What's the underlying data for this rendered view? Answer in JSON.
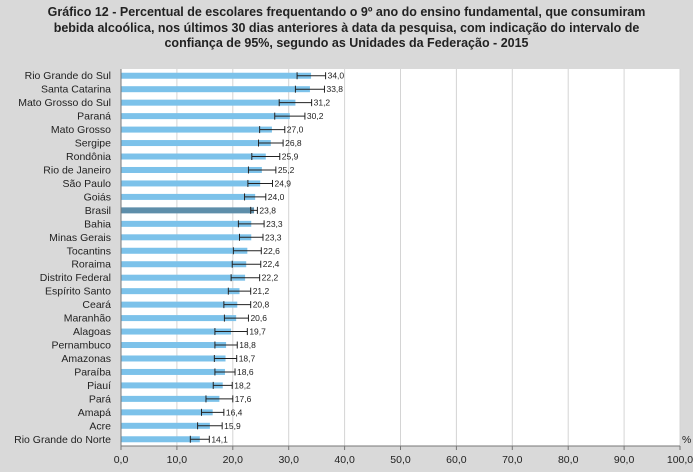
{
  "title_lines": [
    "Gráfico 12 - Percentual de escolares frequentando o 9º ano do ensino fundamental, que consumiram",
    "bebida alcoólica, nos últimos 30 dias anteriores à data da pesquisa, com indicação do intervalo de",
    "confiança de 95%, segundo as Unidades da Federação - 2015"
  ],
  "colors": {
    "background": "#d9d9d9",
    "plot": "#ffffff",
    "bar": "#7cc2ea",
    "bar_highlight": "#5e8eaa",
    "error": "#222222"
  },
  "chart_data": {
    "type": "bar",
    "orientation": "horizontal",
    "categories": [
      "Rio Grande do Sul",
      "Santa Catarina",
      "Mato Grosso do Sul",
      "Paraná",
      "Mato Grosso",
      "Sergipe",
      "Rondônia",
      "Rio de Janeiro",
      "São Paulo",
      "Goiás",
      "Brasil",
      "Bahia",
      "Minas Gerais",
      "Tocantins",
      "Roraima",
      "Distrito Federal",
      "Espírito Santo",
      "Ceará",
      "Maranhão",
      "Alagoas",
      "Pernambuco",
      "Amazonas",
      "Paraíba",
      "Piauí",
      "Pará",
      "Amapá",
      "Acre",
      "Rio Grande do Norte"
    ],
    "values": [
      34.0,
      33.8,
      31.2,
      30.2,
      27.0,
      26.8,
      25.9,
      25.2,
      24.9,
      24.0,
      23.8,
      23.3,
      23.3,
      22.6,
      22.4,
      22.2,
      21.2,
      20.8,
      20.6,
      19.7,
      18.8,
      18.7,
      18.6,
      18.2,
      17.6,
      16.4,
      15.9,
      14.1
    ],
    "value_labels": [
      "34,0",
      "33,8",
      "31,2",
      "30,2",
      "27,0",
      "26,8",
      "25,9",
      "25,2",
      "24,9",
      "24,0",
      "23,8",
      "23,3",
      "23,3",
      "22,6",
      "22,4",
      "22,2",
      "21,2",
      "20,8",
      "20,6",
      "19,7",
      "18,8",
      "18,7",
      "18,6",
      "18,2",
      "17,6",
      "16,4",
      "15,9",
      "14,1"
    ],
    "ci_low": [
      31.5,
      31.2,
      28.3,
      27.5,
      24.8,
      24.6,
      23.4,
      22.8,
      22.7,
      22.1,
      23.2,
      21.0,
      21.2,
      20.1,
      19.9,
      19.7,
      19.2,
      18.4,
      18.5,
      16.8,
      16.8,
      16.7,
      16.8,
      16.5,
      15.2,
      14.4,
      13.7,
      12.4
    ],
    "ci_high": [
      36.6,
      36.4,
      34.1,
      32.9,
      29.3,
      29.0,
      28.4,
      27.7,
      27.1,
      25.9,
      24.4,
      25.6,
      25.4,
      25.1,
      25.0,
      24.8,
      23.2,
      23.2,
      22.8,
      22.6,
      20.8,
      20.7,
      20.4,
      19.9,
      20.0,
      18.4,
      18.1,
      15.8
    ],
    "highlight": "Brasil",
    "xlim": [
      0,
      100
    ],
    "xticks": [
      0,
      10,
      20,
      30,
      40,
      50,
      60,
      70,
      80,
      90,
      100
    ],
    "xtick_labels": [
      "0,0",
      "10,0",
      "20,0",
      "30,0",
      "40,0",
      "50,0",
      "60,0",
      "70,0",
      "80,0",
      "90,0",
      "100,0"
    ],
    "unit_label": "%",
    "grid": true
  }
}
